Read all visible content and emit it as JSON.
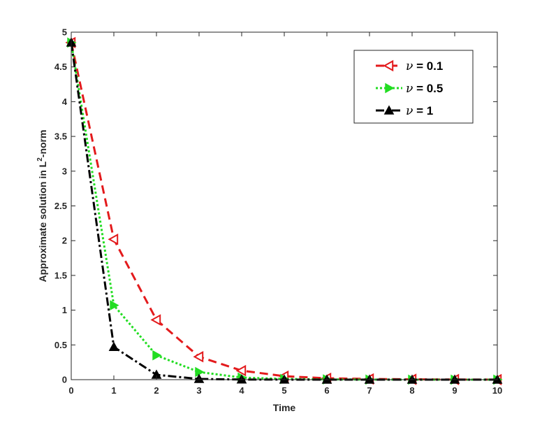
{
  "chart_data": {
    "type": "line",
    "title": "",
    "xlabel": "Time",
    "ylabel": {
      "prefix": "Approximate solution in L",
      "superscript": "2",
      "suffix": "-norm"
    },
    "xlim": [
      0,
      10
    ],
    "ylim": [
      0,
      5
    ],
    "x_ticks": [
      0,
      1,
      2,
      3,
      4,
      5,
      6,
      7,
      8,
      9,
      10
    ],
    "y_ticks": [
      0,
      0.5,
      1,
      1.5,
      2,
      2.5,
      3,
      3.5,
      4,
      4.5,
      5
    ],
    "grid": false,
    "legend_position": "top-right",
    "x": [
      0,
      1,
      2,
      3,
      4,
      5,
      6,
      7,
      8,
      9,
      10
    ],
    "series": [
      {
        "name": "ν = 0.1",
        "name_symbol": "ν",
        "name_value": " = 0.1",
        "color": "#e31a1c",
        "line_style": "dashed",
        "marker": "triangle-left-open",
        "values": [
          4.85,
          2.02,
          0.86,
          0.33,
          0.13,
          0.05,
          0.02,
          0.01,
          0.005,
          0.002,
          0.001
        ]
      },
      {
        "name": "ν = 0.5",
        "name_symbol": "ν",
        "name_value": " = 0.5",
        "color": "#22dd22",
        "line_style": "dotted",
        "marker": "triangle-right-filled",
        "values": [
          4.85,
          1.07,
          0.35,
          0.11,
          0.03,
          0.01,
          0.004,
          0.001,
          0.0005,
          0.0002,
          0.0001
        ]
      },
      {
        "name": "ν = 1",
        "name_symbol": "ν",
        "name_value": " = 1",
        "color": "#000000",
        "line_style": "dashdot",
        "marker": "triangle-up-filled",
        "values": [
          4.85,
          0.47,
          0.07,
          0.01,
          0.002,
          0.0005,
          0.0001,
          0.0,
          0.0,
          0.0,
          0.0
        ]
      }
    ]
  }
}
